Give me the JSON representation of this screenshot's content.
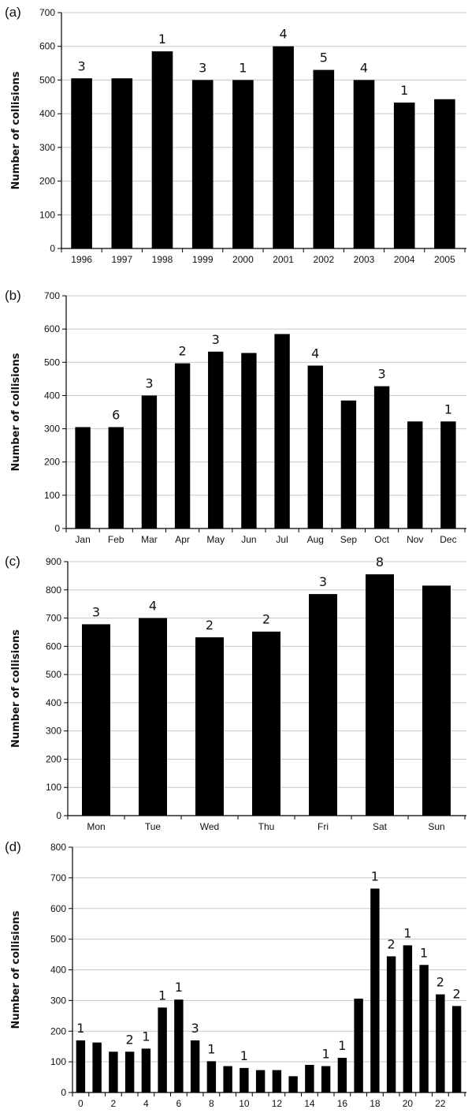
{
  "chart_data": [
    {
      "panel_label": "(a)",
      "type": "bar",
      "ylabel": "Number of collisions",
      "xlabel": "",
      "ylim": [
        0,
        700
      ],
      "yticks": [
        0,
        100,
        200,
        300,
        400,
        500,
        600,
        700
      ],
      "grid": true,
      "categories": [
        "1996",
        "1997",
        "1998",
        "1999",
        "2000",
        "2001",
        "2002",
        "2003",
        "2004",
        "2005"
      ],
      "values": [
        505,
        505,
        585,
        500,
        500,
        600,
        530,
        500,
        433,
        443
      ],
      "labels": [
        "3",
        "",
        "1",
        "3",
        "1",
        "4",
        "5",
        "4",
        "1",
        ""
      ]
    },
    {
      "panel_label": "(b)",
      "type": "bar",
      "ylabel": "Number of collisions",
      "xlabel": "",
      "ylim": [
        0,
        700
      ],
      "yticks": [
        0,
        100,
        200,
        300,
        400,
        500,
        600,
        700
      ],
      "grid": true,
      "categories": [
        "Jan",
        "Feb",
        "Mar",
        "Apr",
        "May",
        "Jun",
        "Jul",
        "Aug",
        "Sep",
        "Oct",
        "Nov",
        "Dec"
      ],
      "values": [
        305,
        305,
        400,
        497,
        532,
        528,
        585,
        490,
        385,
        428,
        322,
        322
      ],
      "labels": [
        "",
        "6",
        "3",
        "2",
        "3",
        "",
        "",
        "4",
        "",
        "3",
        "",
        "1"
      ]
    },
    {
      "panel_label": "(c)",
      "type": "bar",
      "ylabel": "Number of collisions",
      "xlabel": "",
      "ylim": [
        0,
        900
      ],
      "yticks": [
        0,
        100,
        200,
        300,
        400,
        500,
        600,
        700,
        800,
        900
      ],
      "grid": true,
      "categories": [
        "Mon",
        "Tue",
        "Wed",
        "Thu",
        "Fri",
        "Sat",
        "Sun"
      ],
      "values": [
        678,
        700,
        632,
        652,
        785,
        855,
        815
      ],
      "labels": [
        "3",
        "4",
        "2",
        "2",
        "3",
        "8",
        ""
      ]
    },
    {
      "panel_label": "(d)",
      "type": "bar",
      "ylabel": "Number of collisions",
      "xlabel": "",
      "ylim": [
        0,
        800
      ],
      "yticks": [
        0,
        100,
        200,
        300,
        400,
        500,
        600,
        700,
        800
      ],
      "grid": true,
      "categories": [
        "0",
        "",
        "2",
        "",
        "4",
        "",
        "6",
        "",
        "8",
        "",
        "10",
        "",
        "12",
        "",
        "14",
        "",
        "16",
        "",
        "18",
        "",
        "20",
        "",
        "22",
        ""
      ],
      "values": [
        170,
        163,
        133,
        133,
        143,
        277,
        303,
        170,
        102,
        86,
        80,
        73,
        73,
        53,
        90,
        86,
        113,
        306,
        665,
        444,
        480,
        416,
        320,
        282
      ],
      "labels": [
        "1",
        "",
        "",
        "2",
        "1",
        "1",
        "1",
        "3",
        "1",
        "",
        "1",
        "",
        "",
        "",
        "",
        "1",
        "1",
        "",
        "1",
        "2",
        "1",
        "1",
        "2",
        "2"
      ]
    }
  ],
  "layout": {
    "panels": [
      {
        "top": 0,
        "height": 345,
        "plot": [
          78,
          16,
          594,
          315
        ],
        "barWidthFrac": 0.52,
        "labelSize": 15
      },
      {
        "top": 355,
        "height": 345,
        "plot": [
          84,
          20,
          594,
          315
        ],
        "barWidthFrac": 0.46,
        "labelSize": 15
      },
      {
        "top": 700,
        "height": 360,
        "plot": [
          86,
          12,
          594,
          334
        ],
        "barWidthFrac": 0.5,
        "labelSize": 16
      },
      {
        "top": 1060,
        "height": 351,
        "plot": [
          92,
          14,
          594,
          325
        ],
        "barWidthFrac": 0.55,
        "labelSize": 16
      }
    ]
  },
  "colors": {
    "bar": "#000000",
    "grid": "#c8c8c8",
    "axis": "#000000",
    "text": "#111111"
  }
}
